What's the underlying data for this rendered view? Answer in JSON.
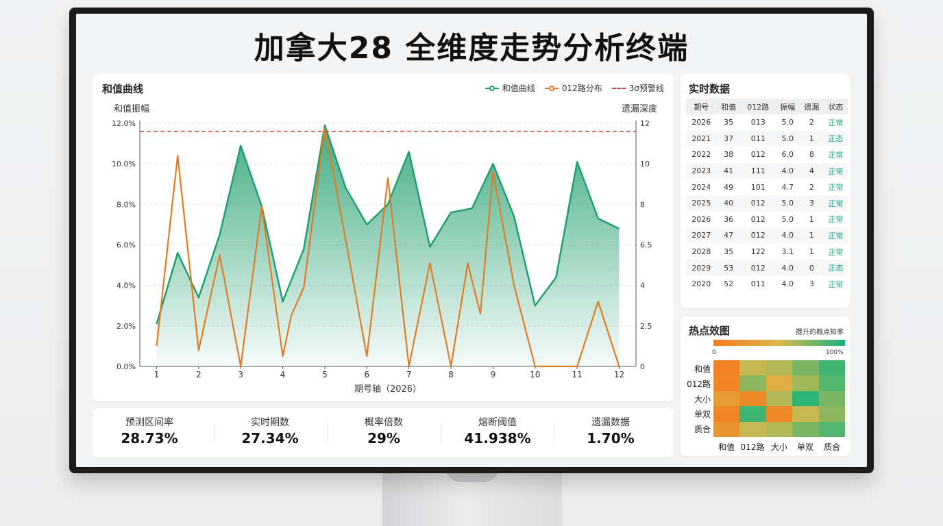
{
  "app_title": "加拿大28 全维度走势分析终端",
  "main_chart": {
    "title": "和值曲线",
    "legend": [
      {
        "label": "和值曲线",
        "color": "#1f9e6e"
      },
      {
        "label": "012路分布",
        "color": "#e07b22"
      },
      {
        "label": "3σ预警线",
        "color": "#d23a3a"
      }
    ]
  },
  "chart_data": {
    "type": "line",
    "title": "和值曲线",
    "xlabel": "期号轴（2026）",
    "ylabel_left": "和值振幅",
    "ylabel_right": "遗漏深度",
    "x_ticks": [
      "1",
      "2",
      "3",
      "4",
      "5",
      "6",
      "7",
      "8",
      "9",
      "10",
      "11",
      "12"
    ],
    "y_left_ticks": [
      "0.0%",
      "2.0%",
      "4.0%",
      "6.0%",
      "8.0%",
      "10.0%",
      "12.0%"
    ],
    "y_right_ticks": [
      "0",
      "2.5",
      "4",
      "6.5",
      "8",
      "10",
      "12"
    ],
    "ylim": [
      0,
      12
    ],
    "grid": true,
    "legend_position": "top-right",
    "series": [
      {
        "name": "和值曲线",
        "color": "#1f9e6e",
        "area": true,
        "x": [
          1,
          1.5,
          2,
          2.5,
          3,
          3.5,
          4,
          4.5,
          5,
          5.5,
          6,
          6.5,
          7,
          7.5,
          8,
          8.5,
          9,
          9.5,
          10,
          10.5,
          11,
          11.5,
          12
        ],
        "y": [
          2.1,
          5.6,
          3.4,
          6.5,
          10.9,
          7.9,
          3.2,
          5.8,
          11.9,
          8.8,
          7.0,
          8.0,
          10.6,
          5.9,
          7.6,
          7.8,
          10.0,
          7.4,
          3.0,
          4.4,
          10.1,
          7.3,
          6.8
        ]
      },
      {
        "name": "012路分布",
        "color": "#e07b22",
        "x": [
          1,
          1.5,
          2,
          2.5,
          3,
          3.5,
          4,
          4.2,
          4.5,
          5,
          5.5,
          6,
          6.5,
          7,
          7.5,
          8,
          8.4,
          8.7,
          9,
          9.5,
          10,
          10.5,
          11,
          11.5,
          12
        ],
        "y": [
          1.0,
          10.4,
          0.8,
          5.5,
          0,
          7.9,
          0.5,
          2.5,
          3.9,
          11.8,
          6.2,
          0.5,
          9.3,
          0,
          5.1,
          0,
          5.1,
          2.6,
          9.6,
          4.0,
          0,
          0,
          0,
          3.2,
          0
        ]
      },
      {
        "name": "3σ预警线",
        "color": "#d23a3a",
        "dashed": true,
        "y_constant": 11.6
      }
    ]
  },
  "stats": [
    {
      "label": "预测区间率",
      "value": "28.73%"
    },
    {
      "label": "实时期数",
      "value": "27.34%"
    },
    {
      "label": "概率倍数",
      "value": "29%"
    },
    {
      "label": "熔断阈值",
      "value": "41.938%"
    },
    {
      "label": "遗漏数据",
      "value": "1.70%"
    }
  ],
  "realtime": {
    "title": "实时数据",
    "columns": [
      "期号",
      "和值",
      "012路",
      "振幅",
      "遗漏",
      "状态"
    ],
    "rows": [
      [
        "2026",
        "35",
        "013",
        "5.0",
        "2",
        "正常"
      ],
      [
        "2021",
        "37",
        "011",
        "5.0",
        "1",
        "正态"
      ],
      [
        "2022",
        "38",
        "012",
        "6.0",
        "8",
        "正常"
      ],
      [
        "2023",
        "41",
        "111",
        "4.0",
        "4",
        "正常"
      ],
      [
        "2024",
        "49",
        "101",
        "4.7",
        "2",
        "正常"
      ],
      [
        "2025",
        "40",
        "012",
        "5.0",
        "3",
        "正常"
      ],
      [
        "2026",
        "36",
        "012",
        "5.0",
        "1",
        "正常"
      ],
      [
        "2027",
        "47",
        "012",
        "4.0",
        "1",
        "正常"
      ],
      [
        "2028",
        "35",
        "122",
        "3.1",
        "1",
        "正常"
      ],
      [
        "2029",
        "53",
        "012",
        "4.0",
        "0",
        "正态"
      ],
      [
        "2020",
        "52",
        "011",
        "4.0",
        "3",
        "正常"
      ]
    ]
  },
  "heatmap": {
    "title": "热点效图",
    "hint": "提升的概点知率",
    "scale_min": "0",
    "scale_max": "100%",
    "row_labels": [
      "和值",
      "012路",
      "大小",
      "单双",
      "质合"
    ],
    "col_labels": [
      "和值",
      "012路",
      "大小",
      "单双",
      "质合"
    ],
    "values": [
      [
        0.05,
        0.55,
        0.6,
        0.75,
        0.9
      ],
      [
        0.08,
        0.7,
        0.4,
        0.65,
        0.85
      ],
      [
        0.25,
        0.12,
        0.6,
        0.95,
        0.75
      ],
      [
        0.08,
        0.9,
        0.1,
        0.55,
        0.7
      ],
      [
        0.2,
        0.55,
        0.6,
        0.75,
        0.85
      ]
    ]
  }
}
